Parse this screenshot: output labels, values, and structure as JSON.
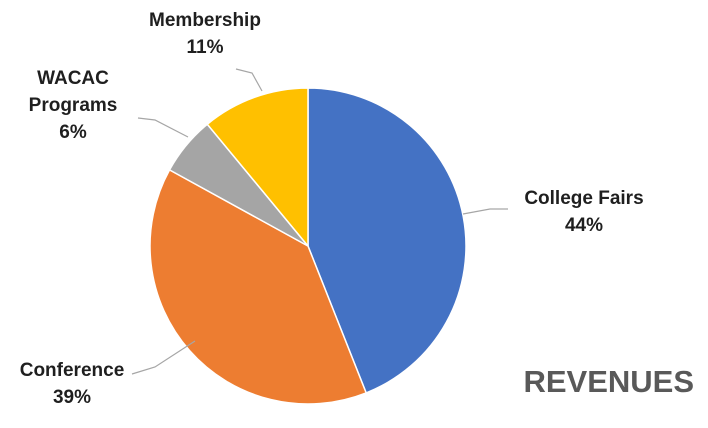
{
  "chart_data": {
    "type": "pie",
    "title": "REVENUES",
    "start_angle_deg": 0,
    "direction": "clockwise",
    "slices": [
      {
        "label_lines": [
          "College Fairs"
        ],
        "value": 44,
        "value_label": "44%",
        "color": "#4472c4"
      },
      {
        "label_lines": [
          "Conference"
        ],
        "value": 39,
        "value_label": "39%",
        "color": "#ed7d31"
      },
      {
        "label_lines": [
          "WACAC",
          "Programs"
        ],
        "value": 6,
        "value_label": "6%",
        "color": "#a5a5a5"
      },
      {
        "label_lines": [
          "Membership"
        ],
        "value": 11,
        "value_label": "11%",
        "color": "#ffc000"
      }
    ],
    "legend": "none"
  }
}
